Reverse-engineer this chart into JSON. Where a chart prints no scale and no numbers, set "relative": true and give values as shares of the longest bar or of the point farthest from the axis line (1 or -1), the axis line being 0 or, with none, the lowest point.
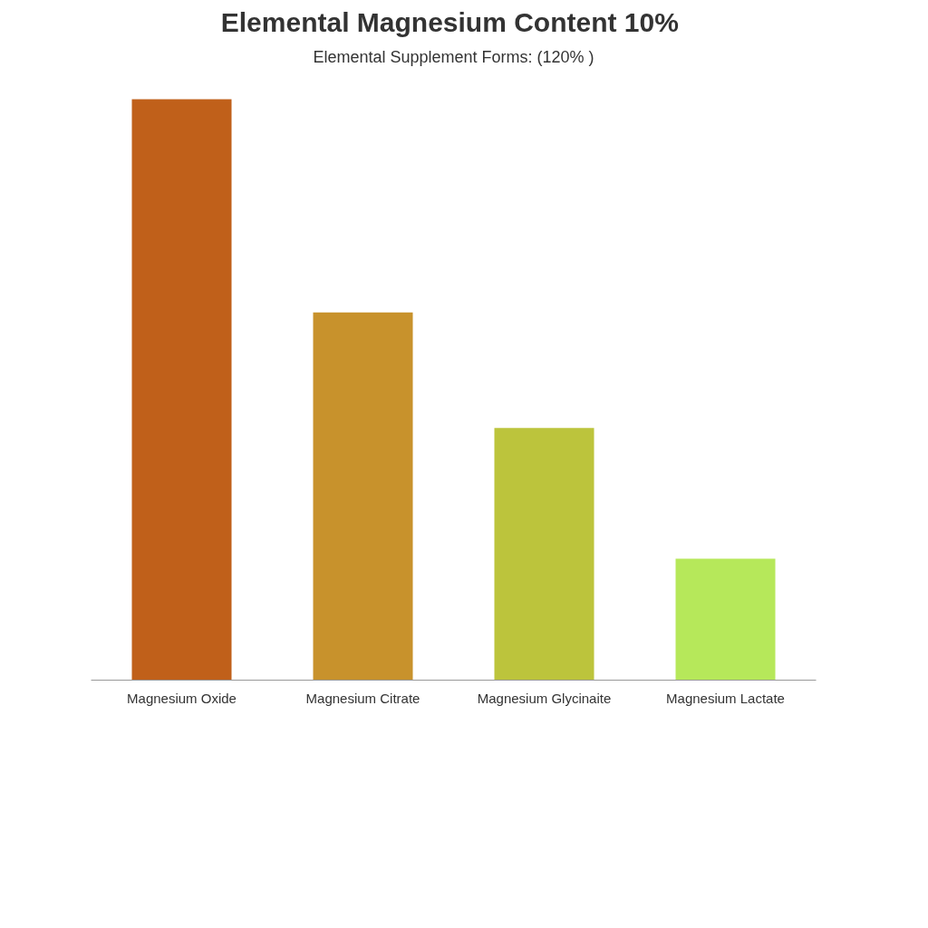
{
  "chart_data": {
    "type": "bar",
    "title": "Elemental Magnesium Content  10%",
    "subtitle": "Elemental Supplement Forms: (120% )",
    "categories": [
      "Magnesium Oxide",
      "Magnesium Citrate",
      "Magnesium Glycinaite",
      "Magnesium Lactate"
    ],
    "values": [
      1,
      0.633,
      0.434,
      0.209
    ],
    "colors": [
      "#c0601a",
      "#c8922c",
      "#bcc43c",
      "#b6e85a"
    ],
    "relative": true
  }
}
